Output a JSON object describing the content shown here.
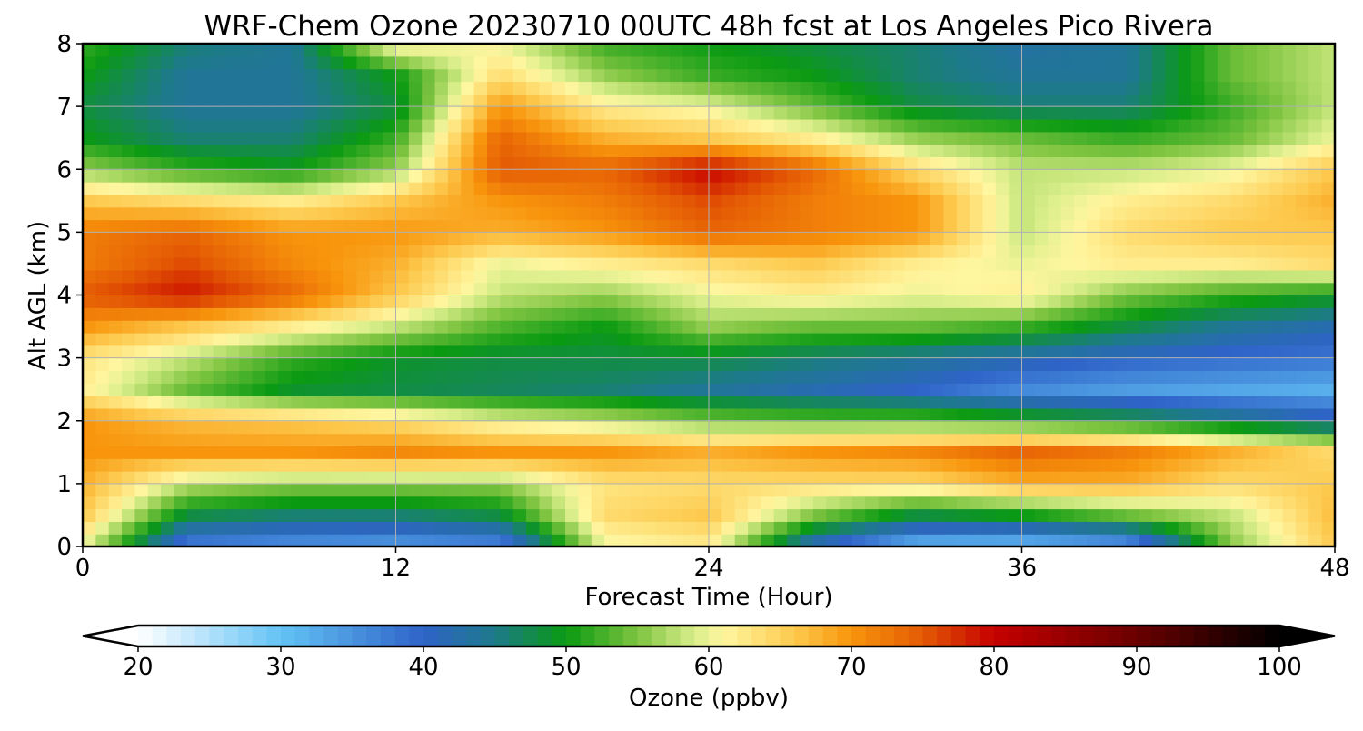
{
  "chart_data": {
    "type": "heatmap",
    "title": "WRF-Chem Ozone  20230710 00UTC 48h fcst at Los Angeles Pico Rivera",
    "xlabel": "Forecast Time (Hour)",
    "ylabel": "Alt AGL (km)",
    "xlim": [
      0,
      48
    ],
    "ylim": [
      0,
      8
    ],
    "xticks": [
      0,
      12,
      24,
      36,
      48
    ],
    "yticks": [
      0,
      1,
      2,
      3,
      4,
      5,
      6,
      7,
      8
    ],
    "grid": true,
    "colorbar": {
      "label": "Ozone  (ppbv)",
      "orientation": "horizontal",
      "placement": "bottom",
      "range": [
        20,
        100
      ],
      "ticks": [
        20,
        30,
        40,
        50,
        60,
        70,
        80,
        90,
        100
      ],
      "extend": "both",
      "colors": [
        {
          "value": 20,
          "color": "#ffffff"
        },
        {
          "value": 30,
          "color": "#63c3f5"
        },
        {
          "value": 40,
          "color": "#2f63c8"
        },
        {
          "value": 45,
          "color": "#1d7a8a"
        },
        {
          "value": 50,
          "color": "#0a9a12"
        },
        {
          "value": 55,
          "color": "#7ec440"
        },
        {
          "value": 59,
          "color": "#d9ee8a"
        },
        {
          "value": 61,
          "color": "#fff6a0"
        },
        {
          "value": 66,
          "color": "#fdc94d"
        },
        {
          "value": 70,
          "color": "#f8950c"
        },
        {
          "value": 75,
          "color": "#e45a04"
        },
        {
          "value": 80,
          "color": "#c60000"
        },
        {
          "value": 90,
          "color": "#6a0000"
        },
        {
          "value": 100,
          "color": "#000000"
        }
      ]
    },
    "x": [
      0,
      4,
      8,
      12,
      16,
      20,
      24,
      28,
      32,
      36,
      40,
      44,
      48
    ],
    "y": [
      0,
      0.5,
      1,
      1.5,
      2,
      2.5,
      3,
      3.5,
      4,
      4.5,
      5,
      5.5,
      6,
      6.5,
      7,
      7.5,
      8
    ],
    "z": [
      [
        60,
        36,
        34,
        33,
        35,
        60,
        62,
        40,
        30,
        29,
        32,
        55,
        66
      ],
      [
        66,
        48,
        46,
        46,
        48,
        64,
        66,
        55,
        48,
        50,
        54,
        58,
        67
      ],
      [
        68,
        58,
        56,
        56,
        56,
        63,
        64,
        64,
        64,
        68,
        68,
        64,
        66
      ],
      [
        70,
        70,
        70,
        71,
        70,
        70,
        68,
        70,
        71,
        74,
        72,
        68,
        64
      ],
      [
        70,
        67,
        66,
        64,
        60,
        58,
        55,
        54,
        54,
        52,
        50,
        46,
        42
      ],
      [
        62,
        54,
        49,
        48,
        47,
        46,
        44,
        42,
        40,
        36,
        34,
        33,
        32
      ],
      [
        63,
        58,
        52,
        49,
        48,
        48,
        48,
        46,
        44,
        42,
        40,
        39,
        38
      ],
      [
        70,
        66,
        62,
        58,
        53,
        50,
        56,
        54,
        54,
        52,
        48,
        44,
        42
      ],
      [
        75,
        79,
        74,
        66,
        58,
        56,
        60,
        62,
        60,
        62,
        55,
        52,
        50
      ],
      [
        72,
        76,
        71,
        68,
        60,
        62,
        64,
        66,
        62,
        60,
        62,
        62,
        64
      ],
      [
        72,
        74,
        70,
        70,
        68,
        70,
        74,
        72,
        70,
        58,
        64,
        66,
        66
      ],
      [
        66,
        64,
        62,
        66,
        70,
        72,
        76,
        72,
        70,
        58,
        62,
        64,
        68
      ],
      [
        56,
        52,
        50,
        56,
        75,
        74,
        80,
        74,
        64,
        58,
        58,
        60,
        66
      ],
      [
        50,
        46,
        46,
        52,
        74,
        68,
        66,
        62,
        56,
        54,
        52,
        54,
        60
      ],
      [
        48,
        44,
        44,
        48,
        70,
        62,
        60,
        54,
        48,
        46,
        46,
        52,
        58
      ],
      [
        50,
        44,
        44,
        50,
        64,
        56,
        52,
        50,
        46,
        44,
        44,
        54,
        58
      ],
      [
        52,
        46,
        44,
        62,
        60,
        52,
        50,
        48,
        46,
        43,
        44,
        54,
        58
      ]
    ]
  }
}
